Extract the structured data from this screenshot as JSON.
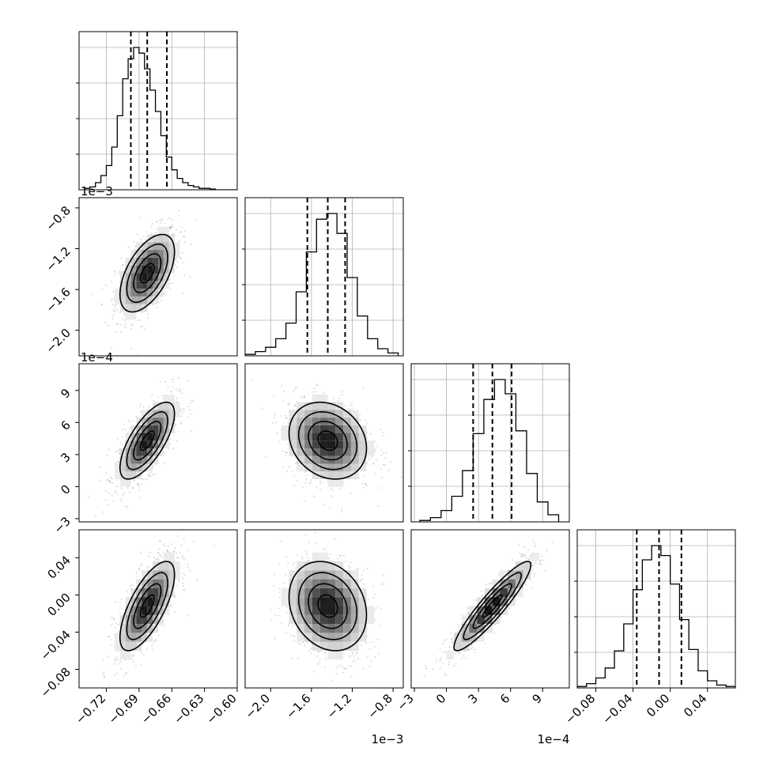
{
  "chart_data": {
    "type": "corner",
    "parameters": [
      {
        "range": [
          -0.745,
          -0.6
        ],
        "ticks": [
          "−0.72",
          "−0.69",
          "−0.66",
          "−0.63",
          "−0.60"
        ],
        "tick_values": [
          -0.72,
          -0.69,
          -0.66,
          -0.63,
          -0.6
        ],
        "offset": "",
        "mean": -0.6825,
        "sigma": 0.0125,
        "skew": 0.25,
        "quantiles": [
          -0.6975,
          -0.6825,
          -0.6645
        ],
        "hist_bins": [
          -0.74,
          -0.735,
          -0.73,
          -0.725,
          -0.72,
          -0.715,
          -0.71,
          -0.705,
          -0.7,
          -0.695,
          -0.69,
          -0.685,
          -0.68,
          -0.675,
          -0.67,
          -0.665,
          -0.66,
          -0.655,
          -0.65,
          -0.645,
          -0.64,
          -0.635,
          -0.63,
          -0.625,
          -0.62,
          -0.615,
          -0.61,
          -0.605,
          -0.6
        ],
        "hist_counts": [
          0.01,
          0.02,
          0.05,
          0.1,
          0.17,
          0.3,
          0.52,
          0.78,
          0.92,
          1.0,
          0.96,
          0.85,
          0.7,
          0.55,
          0.38,
          0.23,
          0.14,
          0.08,
          0.05,
          0.03,
          0.02,
          0.01,
          0.01,
          0.005,
          0.0,
          0.0,
          0.0,
          0.0
        ]
      },
      {
        "range": [
          -2.25,
          -0.7
        ],
        "ticks": [
          "−2.0",
          "−1.6",
          "−1.2",
          "−0.8"
        ],
        "tick_values": [
          -2.0,
          -1.6,
          -1.2,
          -0.8
        ],
        "offset": "1e−3",
        "mean": -1.44,
        "sigma": 0.19,
        "skew": 0.0,
        "quantiles": [
          -1.64,
          -1.44,
          -1.27
        ],
        "hist_bins": [
          -2.25,
          -2.15,
          -2.05,
          -1.95,
          -1.85,
          -1.75,
          -1.65,
          -1.55,
          -1.45,
          -1.35,
          -1.25,
          -1.15,
          -1.05,
          -0.95,
          -0.85,
          -0.75
        ],
        "hist_counts": [
          0.01,
          0.03,
          0.06,
          0.12,
          0.23,
          0.45,
          0.73,
          0.96,
          1.0,
          0.86,
          0.55,
          0.28,
          0.12,
          0.05,
          0.02
        ]
      },
      {
        "range": [
          -3.3,
          11.5
        ],
        "ticks": [
          "−3",
          "0",
          "3",
          "6",
          "9"
        ],
        "tick_values": [
          -3,
          0,
          3,
          6,
          9
        ],
        "offset": "1e−4",
        "mean": 4.3,
        "sigma": 1.8,
        "skew": 0.0,
        "quantiles": [
          2.5,
          4.3,
          6.1
        ],
        "hist_bins": [
          -2.5,
          -1.5,
          -0.5,
          0.5,
          1.5,
          2.5,
          3.5,
          4.5,
          5.5,
          6.5,
          7.5,
          8.5,
          9.5,
          10.5
        ],
        "hist_counts": [
          0.01,
          0.03,
          0.08,
          0.18,
          0.36,
          0.62,
          0.86,
          1.0,
          0.9,
          0.64,
          0.34,
          0.14,
          0.05
        ]
      },
      {
        "range": [
          -0.1,
          0.07
        ],
        "ticks": [
          "−0.08",
          "−0.04",
          "0.00",
          "0.04"
        ],
        "tick_values": [
          -0.08,
          -0.04,
          0.0,
          0.04
        ],
        "offset": "",
        "mean": -0.012,
        "sigma": 0.024,
        "skew": 0.0,
        "quantiles": [
          -0.036,
          -0.012,
          0.012
        ],
        "hist_bins": [
          -0.1,
          -0.09,
          -0.08,
          -0.07,
          -0.06,
          -0.05,
          -0.04,
          -0.03,
          -0.02,
          -0.01,
          0.0,
          0.01,
          0.02,
          0.03,
          0.04,
          0.05,
          0.06,
          0.07
        ],
        "hist_counts": [
          0.01,
          0.03,
          0.07,
          0.14,
          0.26,
          0.45,
          0.69,
          0.9,
          1.0,
          0.93,
          0.73,
          0.48,
          0.27,
          0.12,
          0.05,
          0.02,
          0.01
        ]
      }
    ],
    "correlations": {
      "1-0": 0.55,
      "2-0": 0.7,
      "2-1": -0.2,
      "3-0": 0.7,
      "3-1": -0.2,
      "3-2": 0.92
    },
    "contour_levels_sigma": [
      0.5,
      1.0,
      1.5,
      2.0
    ],
    "grid": true,
    "show_datapoints": true
  }
}
